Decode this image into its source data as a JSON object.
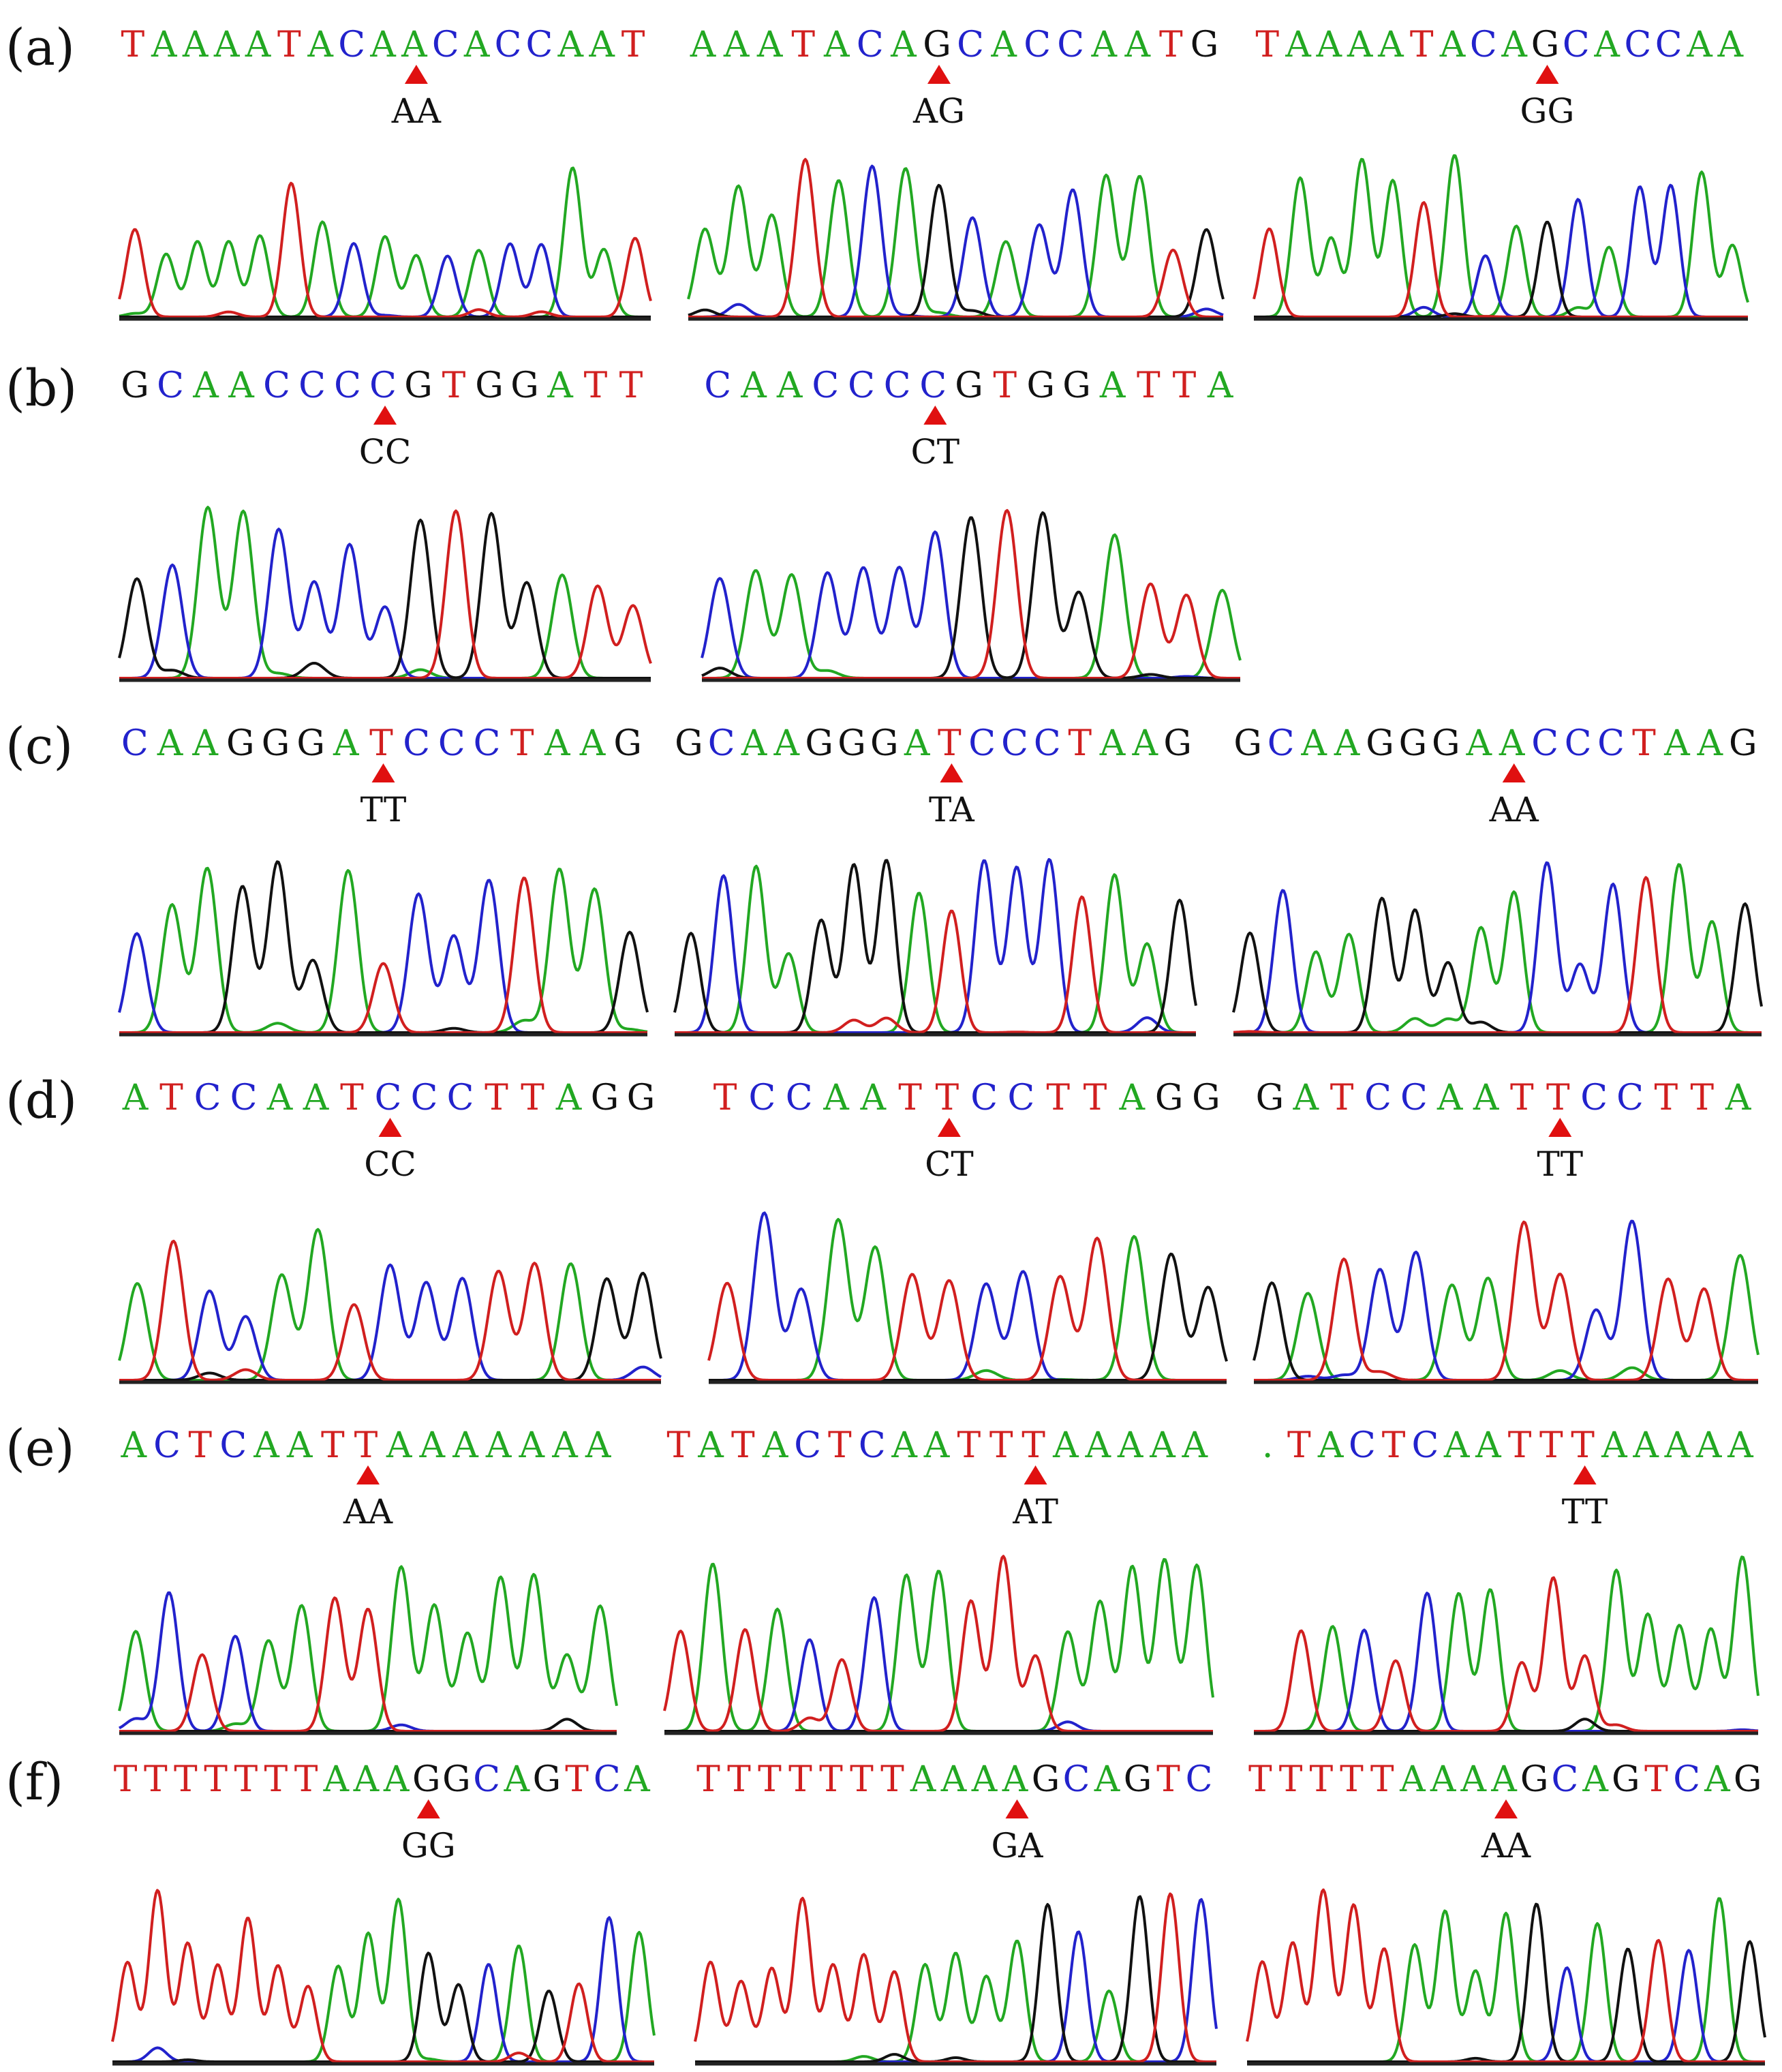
{
  "figure": {
    "colors": {
      "A": "#22a822",
      "C": "#2222cc",
      "G": "#111111",
      "T": "#d11f1f",
      "marker": "#e01010",
      "baseline": "#222222"
    },
    "rows": [
      {
        "label": "(a)",
        "panels": [
          {
            "sequence": "TAAAATACAACACCAAT",
            "genotype": "AA",
            "marker_index": 9
          },
          {
            "sequence": "AAATACAGCACCAATG",
            "genotype": "AG",
            "marker_index": 7
          },
          {
            "sequence": "TAAAATACAGCACCAA",
            "genotype": "GG",
            "marker_index": 9
          }
        ]
      },
      {
        "label": "(b)",
        "panels": [
          {
            "sequence": "GCAACCCCGTGGATT",
            "genotype": "CC",
            "marker_index": 7
          },
          {
            "sequence": "CAACCCCGTGGATTA",
            "genotype": "CT",
            "marker_index": 6
          }
        ]
      },
      {
        "label": "(c)",
        "panels": [
          {
            "sequence": "CAAGGGATCCCTAAG",
            "genotype": "TT",
            "marker_index": 7
          },
          {
            "sequence": "GCAAGGGATCCCTAAG",
            "genotype": "TA",
            "marker_index": 8
          },
          {
            "sequence": "GCAAGGGAACCCTAAG",
            "genotype": "AA",
            "marker_index": 8
          }
        ]
      },
      {
        "label": "(d)",
        "panels": [
          {
            "sequence": "ATCCAATCCCTTAGG",
            "genotype": "CC",
            "marker_index": 7
          },
          {
            "sequence": "TCCAATTCCTTAGG",
            "genotype": "CT",
            "marker_index": 6
          },
          {
            "sequence": "GATCCAATTCCTTA",
            "genotype": "TT",
            "marker_index": 8
          }
        ]
      },
      {
        "label": "(e)",
        "panels": [
          {
            "sequence": "ACTCAATTAAAAAAA",
            "genotype": "AA",
            "marker_index": 7
          },
          {
            "sequence": "TATACTCAATTTAAAAA",
            "genotype": "AT",
            "marker_index": 11
          },
          {
            "sequence": ".TACTCAATTTAAAAA",
            "genotype": "TT",
            "marker_index": 10
          }
        ]
      },
      {
        "label": "(f)",
        "panels": [
          {
            "sequence": "TTTTTTTAAAGGCAGTCA",
            "genotype": "GG",
            "marker_index": 10
          },
          {
            "sequence": "TTTTTTTAAAAGCAGTC",
            "genotype": "GA",
            "marker_index": 10
          },
          {
            "sequence": "TTTTTAAAAGCAGTCAG",
            "genotype": "AA",
            "marker_index": 8
          }
        ]
      }
    ]
  }
}
